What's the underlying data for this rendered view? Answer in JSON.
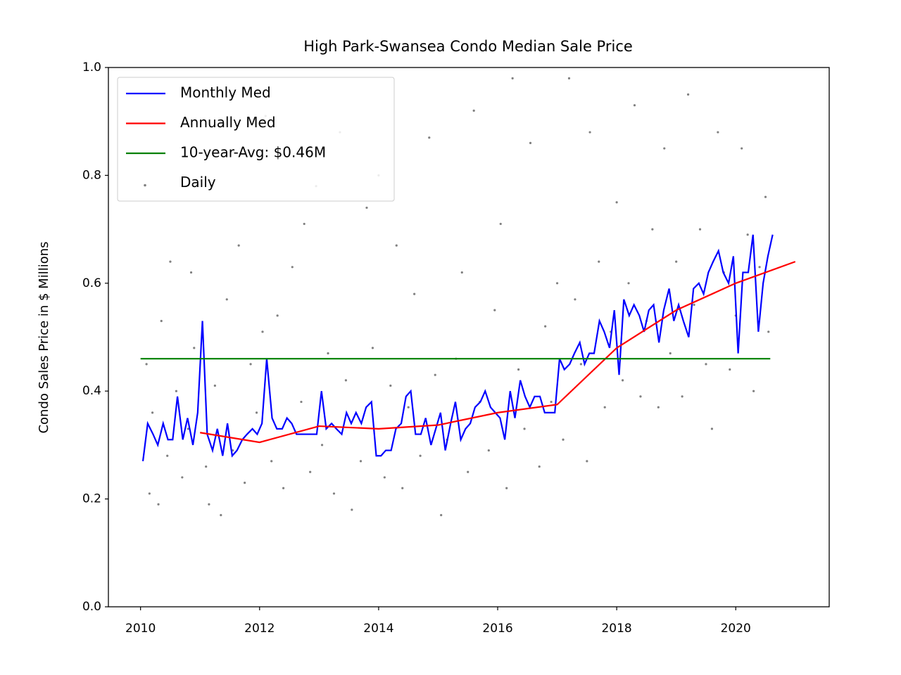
{
  "chart_data": {
    "type": "line",
    "title": "High Park-Swansea Condo Median Sale Price",
    "ylabel": "Condo Sales Price in $ Millions",
    "xlim": [
      2009.46,
      2021.57
    ],
    "ylim": [
      0,
      1
    ],
    "xticks": [
      2010,
      2012,
      2014,
      2016,
      2018,
      2020
    ],
    "yticks": [
      {
        "value": 0,
        "label": "0.0"
      },
      0.2,
      0.4,
      0.6,
      0.8,
      {
        "value": 1,
        "label": "1.0"
      }
    ],
    "legend": "upper left",
    "series": [
      {
        "name": "Monthly Med",
        "color": "#0000ff",
        "marker": "line",
        "x": [
          2010.04,
          2010.12,
          2010.21,
          2010.29,
          2010.38,
          2010.46,
          2010.54,
          2010.62,
          2010.71,
          2010.79,
          2010.88,
          2010.96,
          2011.04,
          2011.12,
          2011.21,
          2011.29,
          2011.38,
          2011.46,
          2011.54,
          2011.62,
          2011.71,
          2011.79,
          2011.88,
          2011.96,
          2012.04,
          2012.12,
          2012.21,
          2012.29,
          2012.38,
          2012.46,
          2012.54,
          2012.62,
          2012.71,
          2012.79,
          2012.88,
          2012.96,
          2013.04,
          2013.12,
          2013.21,
          2013.29,
          2013.38,
          2013.46,
          2013.54,
          2013.62,
          2013.71,
          2013.79,
          2013.88,
          2013.96,
          2014.04,
          2014.12,
          2014.21,
          2014.29,
          2014.38,
          2014.46,
          2014.54,
          2014.62,
          2014.71,
          2014.79,
          2014.88,
          2014.96,
          2015.04,
          2015.12,
          2015.21,
          2015.29,
          2015.38,
          2015.46,
          2015.54,
          2015.62,
          2015.71,
          2015.79,
          2015.88,
          2015.96,
          2016.04,
          2016.12,
          2016.21,
          2016.29,
          2016.38,
          2016.46,
          2016.54,
          2016.62,
          2016.71,
          2016.79,
          2016.88,
          2016.96,
          2017.04,
          2017.12,
          2017.21,
          2017.29,
          2017.38,
          2017.46,
          2017.54,
          2017.62,
          2017.71,
          2017.79,
          2017.88,
          2017.96,
          2018.04,
          2018.12,
          2018.21,
          2018.29,
          2018.38,
          2018.46,
          2018.54,
          2018.62,
          2018.71,
          2018.79,
          2018.88,
          2018.96,
          2019.04,
          2019.12,
          2019.21,
          2019.29,
          2019.38,
          2019.46,
          2019.54,
          2019.62,
          2019.71,
          2019.79,
          2019.88,
          2019.96,
          2020.04,
          2020.12,
          2020.21,
          2020.29,
          2020.38,
          2020.46,
          2020.54,
          2020.62
        ],
        "values": [
          0.27,
          0.34,
          0.32,
          0.3,
          0.34,
          0.31,
          0.31,
          0.39,
          0.31,
          0.35,
          0.3,
          0.36,
          0.53,
          0.32,
          0.29,
          0.33,
          0.28,
          0.34,
          0.28,
          0.29,
          0.31,
          0.32,
          0.33,
          0.32,
          0.34,
          0.46,
          0.35,
          0.33,
          0.33,
          0.35,
          0.34,
          0.32,
          0.32,
          0.32,
          0.32,
          0.32,
          0.4,
          0.33,
          0.34,
          0.33,
          0.32,
          0.36,
          0.34,
          0.36,
          0.34,
          0.37,
          0.38,
          0.28,
          0.28,
          0.29,
          0.29,
          0.33,
          0.34,
          0.39,
          0.4,
          0.32,
          0.32,
          0.35,
          0.3,
          0.33,
          0.36,
          0.29,
          0.34,
          0.38,
          0.31,
          0.33,
          0.34,
          0.37,
          0.38,
          0.4,
          0.37,
          0.36,
          0.35,
          0.31,
          0.4,
          0.35,
          0.42,
          0.39,
          0.37,
          0.39,
          0.39,
          0.36,
          0.36,
          0.36,
          0.46,
          0.44,
          0.45,
          0.47,
          0.49,
          0.45,
          0.47,
          0.47,
          0.53,
          0.51,
          0.48,
          0.55,
          0.43,
          0.57,
          0.54,
          0.56,
          0.54,
          0.51,
          0.55,
          0.56,
          0.49,
          0.55,
          0.59,
          0.53,
          0.56,
          0.53,
          0.5,
          0.59,
          0.6,
          0.58,
          0.62,
          0.64,
          0.66,
          0.62,
          0.6,
          0.65,
          0.47,
          0.62,
          0.62,
          0.69,
          0.51,
          0.6,
          0.65,
          0.69
        ]
      },
      {
        "name": "Annually Med",
        "color": "#ff0000",
        "marker": "line",
        "x": [
          2011,
          2012,
          2013,
          2014,
          2015,
          2016,
          2017,
          2018,
          2019,
          2020,
          2021
        ],
        "values": [
          0.323,
          0.305,
          0.335,
          0.33,
          0.337,
          0.36,
          0.375,
          0.48,
          0.55,
          0.6,
          0.64
        ]
      },
      {
        "name": "10-year-Avg: $0.46M",
        "color": "#008000",
        "marker": "line",
        "x": [
          2010,
          2020.58
        ],
        "values": [
          0.46,
          0.46
        ]
      },
      {
        "name": "Daily",
        "color": "#808080",
        "marker": "dot",
        "x": [
          2010.1,
          2010.15,
          2010.2,
          2010.3,
          2010.35,
          2010.45,
          2010.5,
          2010.6,
          2010.7,
          2010.8,
          2010.85,
          2010.9,
          2011.0,
          2011.1,
          2011.15,
          2011.25,
          2011.35,
          2011.45,
          2011.55,
          2011.65,
          2011.75,
          2011.85,
          2011.95,
          2012.05,
          2012.1,
          2012.2,
          2012.3,
          2012.4,
          2012.55,
          2012.7,
          2012.75,
          2012.85,
          2012.95,
          2013.05,
          2013.15,
          2013.25,
          2013.35,
          2013.45,
          2013.55,
          2013.7,
          2013.8,
          2013.9,
          2014.0,
          2014.1,
          2014.2,
          2014.3,
          2014.4,
          2014.5,
          2014.6,
          2014.7,
          2014.85,
          2014.95,
          2015.05,
          2015.15,
          2015.3,
          2015.4,
          2015.5,
          2015.6,
          2015.7,
          2015.85,
          2015.95,
          2016.05,
          2016.15,
          2016.25,
          2016.35,
          2016.45,
          2016.55,
          2016.7,
          2016.8,
          2016.9,
          2017.0,
          2017.1,
          2017.2,
          2017.3,
          2017.4,
          2017.5,
          2017.55,
          2017.7,
          2017.8,
          2017.9,
          2018.0,
          2018.1,
          2018.2,
          2018.3,
          2018.4,
          2018.5,
          2018.6,
          2018.7,
          2018.8,
          2018.9,
          2019.0,
          2019.1,
          2019.2,
          2019.3,
          2019.4,
          2019.5,
          2019.6,
          2019.7,
          2019.8,
          2019.9,
          2020.0,
          2020.1,
          2020.2,
          2020.3,
          2020.4,
          2020.5,
          2020.55
        ],
        "values": [
          0.45,
          0.21,
          0.36,
          0.19,
          0.53,
          0.28,
          0.64,
          0.4,
          0.24,
          0.33,
          0.62,
          0.48,
          0.79,
          0.26,
          0.19,
          0.41,
          0.17,
          0.57,
          0.29,
          0.67,
          0.23,
          0.45,
          0.36,
          0.51,
          0.91,
          0.27,
          0.54,
          0.22,
          0.63,
          0.38,
          0.71,
          0.25,
          0.78,
          0.3,
          0.47,
          0.21,
          0.88,
          0.42,
          0.18,
          0.27,
          0.74,
          0.48,
          0.8,
          0.24,
          0.41,
          0.67,
          0.22,
          0.37,
          0.58,
          0.28,
          0.87,
          0.43,
          0.17,
          0.31,
          0.46,
          0.62,
          0.25,
          0.92,
          0.38,
          0.29,
          0.55,
          0.71,
          0.22,
          0.98,
          0.44,
          0.33,
          0.86,
          0.26,
          0.52,
          0.38,
          0.6,
          0.31,
          0.98,
          0.57,
          0.45,
          0.27,
          0.88,
          0.64,
          0.37,
          0.51,
          0.75,
          0.42,
          0.6,
          0.93,
          0.39,
          0.53,
          0.7,
          0.37,
          0.85,
          0.47,
          0.64,
          0.39,
          0.95,
          0.56,
          0.7,
          0.45,
          0.33,
          0.88,
          0.62,
          0.44,
          0.54,
          0.85,
          0.69,
          0.4,
          0.63,
          0.76,
          0.51
        ]
      }
    ]
  }
}
